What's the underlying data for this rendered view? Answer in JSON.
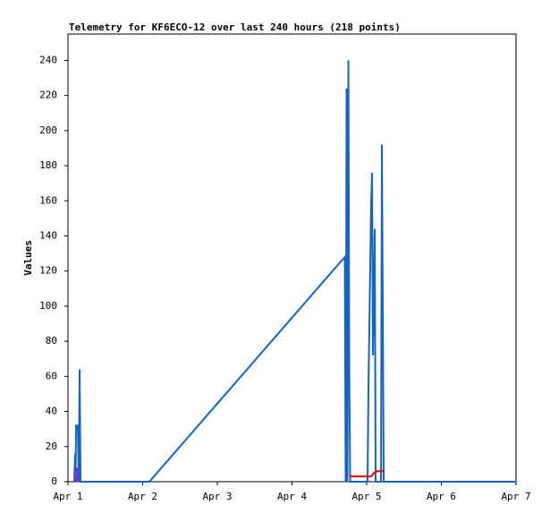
{
  "chart_data": {
    "type": "line",
    "title": "Telemetry for KF6ECO-12 over last 240 hours (218 points)",
    "y_label": "Values",
    "xlim": [
      0,
      6
    ],
    "xticks": [
      {
        "value": 0,
        "label": "Apr 1"
      },
      {
        "value": 1,
        "label": "Apr 2"
      },
      {
        "value": 2,
        "label": "Apr 3"
      },
      {
        "value": 3,
        "label": "Apr 4"
      },
      {
        "value": 4,
        "label": "Apr 5"
      },
      {
        "value": 5,
        "label": "Apr 6"
      },
      {
        "value": 6,
        "label": "Apr 7"
      }
    ],
    "ylim": [
      0,
      255
    ],
    "yticks": [
      0,
      20,
      40,
      60,
      80,
      100,
      120,
      140,
      160,
      180,
      200,
      220,
      240
    ],
    "series": [
      {
        "color": "#1565c0",
        "x": [
          0.084,
          0.096,
          0.102,
          0.108,
          0.132,
          0.144,
          0.156,
          0.168,
          1.09,
          3.707,
          3.719,
          3.731,
          3.743,
          3.755,
          3.767,
          3.779,
          4.012,
          4.024,
          4.036,
          4.048,
          4.06,
          4.072,
          4.084,
          4.108,
          4.12,
          4.192,
          4.204,
          4.216,
          4.228,
          6
        ],
        "values": [
          0,
          16,
          0,
          32,
          32,
          0,
          64,
          0,
          0,
          128,
          0,
          224,
          0,
          240,
          64,
          0,
          0,
          54,
          88,
          124,
          158,
          176,
          72,
          144,
          0,
          0,
          192,
          96,
          0,
          0
        ]
      },
      {
        "color": "#dd0000",
        "x": [
          3.77,
          3.79,
          4.06,
          4.1,
          4.14,
          4.23
        ],
        "values": [
          4,
          3,
          3,
          5,
          6,
          6
        ]
      },
      {
        "color": "#8a2be2",
        "x": [
          0.108,
          0.12,
          0.132
        ],
        "values": [
          0,
          8,
          0
        ]
      }
    ]
  }
}
